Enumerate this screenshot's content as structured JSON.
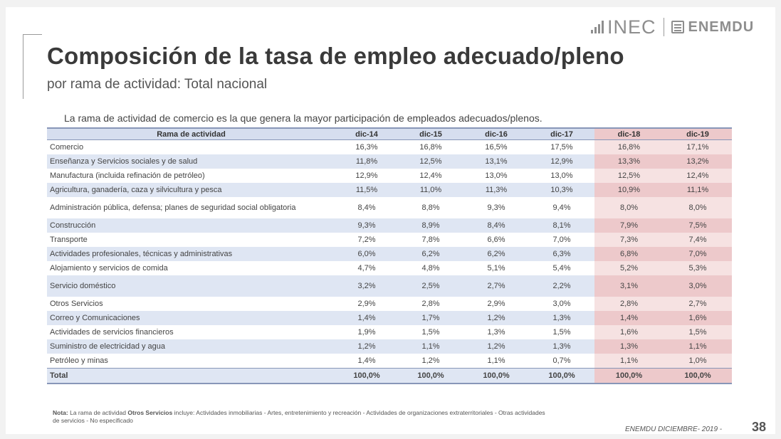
{
  "title": "Composición de la tasa de empleo adecuado/pleno",
  "subtitle": "por rama de actividad: Total nacional",
  "logos": {
    "inec": "INEC",
    "enemdu": "ENEMDU"
  },
  "intro": "La rama de actividad de comercio es la que genera la mayor participación de empleados adecuados/plenos.",
  "table": {
    "headers": [
      "Rama de actividad",
      "dic-14",
      "dic-15",
      "dic-16",
      "dic-17",
      "dic-18",
      "dic-19"
    ],
    "rows": [
      [
        "Comercio",
        "16,3%",
        "16,8%",
        "16,5%",
        "17,5%",
        "16,8%",
        "17,1%"
      ],
      [
        "Enseñanza  y Servicios sociales y de salud",
        "11,8%",
        "12,5%",
        "13,1%",
        "12,9%",
        "13,3%",
        "13,2%"
      ],
      [
        "Manufactura (incluida refinación de petróleo)",
        "12,9%",
        "12,4%",
        "13,0%",
        "13,0%",
        "12,5%",
        "12,4%"
      ],
      [
        "Agricultura, ganadería, caza y silvicultura y pesca",
        "11,5%",
        "11,0%",
        "11,3%",
        "10,3%",
        "10,9%",
        "11,1%"
      ],
      [
        "Administración pública, defensa; planes de seguridad social obligatoria",
        "8,4%",
        "8,8%",
        "9,3%",
        "9,4%",
        "8,0%",
        "8,0%"
      ],
      [
        "Construcción",
        "9,3%",
        "8,9%",
        "8,4%",
        "8,1%",
        "7,9%",
        "7,5%"
      ],
      [
        "Transporte",
        "7,2%",
        "7,8%",
        "6,6%",
        "7,0%",
        "7,3%",
        "7,4%"
      ],
      [
        "Actividades profesionales, técnicas y administrativas",
        "6,0%",
        "6,2%",
        "6,2%",
        "6,3%",
        "6,8%",
        "7,0%"
      ],
      [
        "Alojamiento y servicios de comida",
        "4,7%",
        "4,8%",
        "5,1%",
        "5,4%",
        "5,2%",
        "5,3%"
      ],
      [
        "Servicio doméstico",
        "3,2%",
        "2,5%",
        "2,7%",
        "2,2%",
        "3,1%",
        "3,0%"
      ],
      [
        "Otros Servicios",
        "2,9%",
        "2,8%",
        "2,9%",
        "3,0%",
        "2,8%",
        "2,7%"
      ],
      [
        "Correo y Comunicaciones",
        "1,4%",
        "1,7%",
        "1,2%",
        "1,3%",
        "1,4%",
        "1,6%"
      ],
      [
        "Actividades de servicios financieros",
        "1,9%",
        "1,5%",
        "1,3%",
        "1,5%",
        "1,6%",
        "1,5%"
      ],
      [
        "Suministro de electricidad y agua",
        "1,2%",
        "1,1%",
        "1,2%",
        "1,3%",
        "1,3%",
        "1,1%"
      ],
      [
        "Petróleo y minas",
        "1,4%",
        "1,2%",
        "1,1%",
        "0,7%",
        "1,1%",
        "1,0%"
      ]
    ],
    "total": [
      "Total",
      "100,0%",
      "100,0%",
      "100,0%",
      "100,0%",
      "100,0%",
      "100,0%"
    ]
  },
  "note": {
    "label": "Nota:",
    "text_before": " La rama de actividad ",
    "bold_term": "Otros Servicios",
    "text_after": " incluye: Actividades inmobiliarias - Artes, entretenimiento y recreación - Actividades de organizaciones extraterritoriales - Otras actividades de servicios - No especificado"
  },
  "footer": {
    "source": "ENEMDU DICIEMBRE- 2019 -",
    "page": "38"
  }
}
